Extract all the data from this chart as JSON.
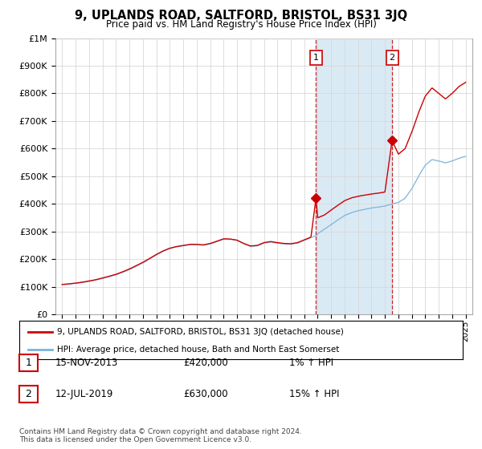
{
  "title": "9, UPLANDS ROAD, SALTFORD, BRISTOL, BS31 3JQ",
  "subtitle": "Price paid vs. HM Land Registry's House Price Index (HPI)",
  "legend_line1": "9, UPLANDS ROAD, SALTFORD, BRISTOL, BS31 3JQ (detached house)",
  "legend_line2": "HPI: Average price, detached house, Bath and North East Somerset",
  "transaction1_label": "1",
  "transaction1_date": "15-NOV-2013",
  "transaction1_price": "£420,000",
  "transaction1_hpi": "1% ↑ HPI",
  "transaction1_year": 2013.87,
  "transaction1_value": 420000,
  "transaction2_label": "2",
  "transaction2_date": "12-JUL-2019",
  "transaction2_price": "£630,000",
  "transaction2_hpi": "15% ↑ HPI",
  "transaction2_year": 2019.53,
  "transaction2_value": 630000,
  "footnote": "Contains HM Land Registry data © Crown copyright and database right 2024.\nThis data is licensed under the Open Government Licence v3.0.",
  "hpi_color": "#7ab4d8",
  "house_color": "#cc0000",
  "shade_color": "#daeaf5",
  "marker_box_color": "#cc0000",
  "ylim": [
    0,
    1000000
  ],
  "xlim_start": 1994.5,
  "xlim_end": 2025.5,
  "yticks": [
    0,
    100000,
    200000,
    300000,
    400000,
    500000,
    600000,
    700000,
    800000,
    900000,
    1000000
  ],
  "ytick_labels": [
    "£0",
    "£100K",
    "£200K",
    "£300K",
    "£400K",
    "£500K",
    "£600K",
    "£700K",
    "£800K",
    "£900K",
    "£1M"
  ],
  "hpi_anchors": [
    [
      1995.0,
      108000
    ],
    [
      1995.5,
      109500
    ],
    [
      1996.0,
      112000
    ],
    [
      1996.5,
      115000
    ],
    [
      1997.0,
      119000
    ],
    [
      1997.5,
      124000
    ],
    [
      1998.0,
      130000
    ],
    [
      1998.5,
      136000
    ],
    [
      1999.0,
      143000
    ],
    [
      1999.5,
      152000
    ],
    [
      2000.0,
      162000
    ],
    [
      2000.5,
      174000
    ],
    [
      2001.0,
      186000
    ],
    [
      2001.5,
      200000
    ],
    [
      2002.0,
      215000
    ],
    [
      2002.5,
      228000
    ],
    [
      2003.0,
      238000
    ],
    [
      2003.5,
      244000
    ],
    [
      2004.0,
      248000
    ],
    [
      2004.5,
      252000
    ],
    [
      2005.0,
      252000
    ],
    [
      2005.5,
      250000
    ],
    [
      2006.0,
      255000
    ],
    [
      2006.5,
      263000
    ],
    [
      2007.0,
      272000
    ],
    [
      2007.5,
      272000
    ],
    [
      2008.0,
      268000
    ],
    [
      2008.5,
      256000
    ],
    [
      2009.0,
      246000
    ],
    [
      2009.5,
      248000
    ],
    [
      2010.0,
      258000
    ],
    [
      2010.5,
      262000
    ],
    [
      2011.0,
      258000
    ],
    [
      2011.5,
      255000
    ],
    [
      2012.0,
      254000
    ],
    [
      2012.5,
      258000
    ],
    [
      2013.0,
      268000
    ],
    [
      2013.5,
      278000
    ],
    [
      2013.87,
      285000
    ],
    [
      2014.0,
      292000
    ],
    [
      2014.5,
      308000
    ],
    [
      2015.0,
      325000
    ],
    [
      2015.5,
      342000
    ],
    [
      2016.0,
      358000
    ],
    [
      2016.5,
      368000
    ],
    [
      2017.0,
      375000
    ],
    [
      2017.5,
      380000
    ],
    [
      2018.0,
      385000
    ],
    [
      2018.5,
      388000
    ],
    [
      2019.0,
      392000
    ],
    [
      2019.53,
      400000
    ],
    [
      2020.0,
      405000
    ],
    [
      2020.5,
      420000
    ],
    [
      2021.0,
      455000
    ],
    [
      2021.5,
      500000
    ],
    [
      2022.0,
      540000
    ],
    [
      2022.5,
      560000
    ],
    [
      2023.0,
      555000
    ],
    [
      2023.5,
      548000
    ],
    [
      2024.0,
      555000
    ],
    [
      2024.5,
      565000
    ],
    [
      2025.0,
      572000
    ]
  ],
  "house_anchors": [
    [
      1995.0,
      108000
    ],
    [
      1995.5,
      110000
    ],
    [
      1996.0,
      113000
    ],
    [
      1996.5,
      116500
    ],
    [
      1997.0,
      120500
    ],
    [
      1997.5,
      125500
    ],
    [
      1998.0,
      131500
    ],
    [
      1998.5,
      138000
    ],
    [
      1999.0,
      145000
    ],
    [
      1999.5,
      154000
    ],
    [
      2000.0,
      164000
    ],
    [
      2000.5,
      176500
    ],
    [
      2001.0,
      188500
    ],
    [
      2001.5,
      202500
    ],
    [
      2002.0,
      217000
    ],
    [
      2002.5,
      230000
    ],
    [
      2003.0,
      240000
    ],
    [
      2003.5,
      246000
    ],
    [
      2004.0,
      250000
    ],
    [
      2004.5,
      254000
    ],
    [
      2005.0,
      254000
    ],
    [
      2005.5,
      252000
    ],
    [
      2006.0,
      257000
    ],
    [
      2006.5,
      265000
    ],
    [
      2007.0,
      274000
    ],
    [
      2007.5,
      273000
    ],
    [
      2008.0,
      269000
    ],
    [
      2008.5,
      257000
    ],
    [
      2009.0,
      248000
    ],
    [
      2009.5,
      250000
    ],
    [
      2010.0,
      260000
    ],
    [
      2010.5,
      264000
    ],
    [
      2011.0,
      260000
    ],
    [
      2011.5,
      257000
    ],
    [
      2012.0,
      256000
    ],
    [
      2012.5,
      260000
    ],
    [
      2013.0,
      270000
    ],
    [
      2013.5,
      280000
    ],
    [
      2013.87,
      420000
    ],
    [
      2014.0,
      350000
    ],
    [
      2014.5,
      360000
    ],
    [
      2015.0,
      378000
    ],
    [
      2015.5,
      395000
    ],
    [
      2016.0,
      412000
    ],
    [
      2016.5,
      422000
    ],
    [
      2017.0,
      428000
    ],
    [
      2017.5,
      432000
    ],
    [
      2018.0,
      436000
    ],
    [
      2018.5,
      439000
    ],
    [
      2019.0,
      443000
    ],
    [
      2019.53,
      630000
    ],
    [
      2020.0,
      580000
    ],
    [
      2020.5,
      600000
    ],
    [
      2021.0,
      660000
    ],
    [
      2021.5,
      730000
    ],
    [
      2022.0,
      790000
    ],
    [
      2022.5,
      820000
    ],
    [
      2023.0,
      800000
    ],
    [
      2023.5,
      780000
    ],
    [
      2024.0,
      800000
    ],
    [
      2024.5,
      825000
    ],
    [
      2025.0,
      840000
    ]
  ]
}
